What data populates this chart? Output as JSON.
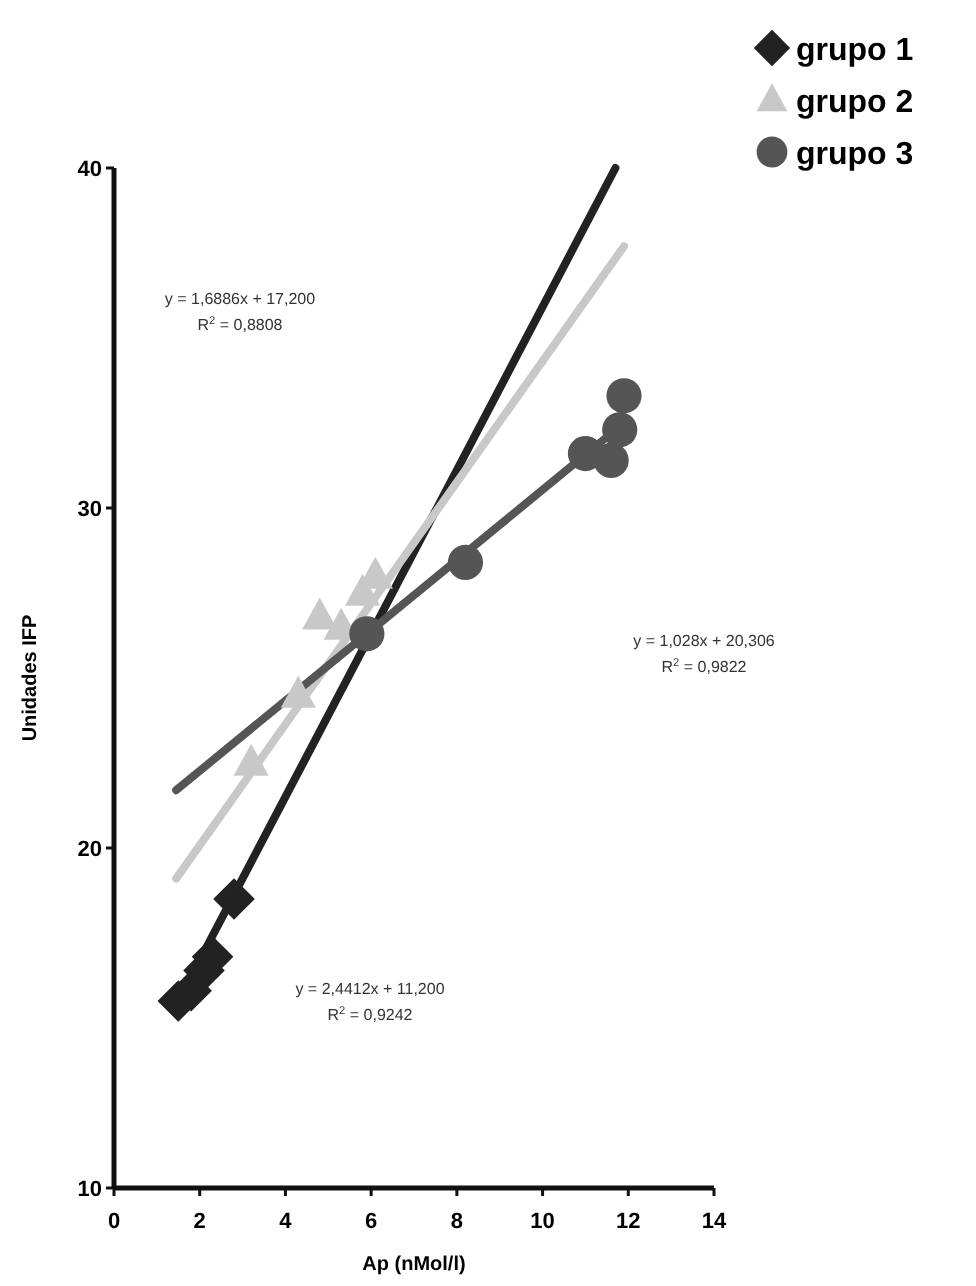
{
  "chart_data": {
    "type": "scatter",
    "xlabel": "Ap (nMol/l)",
    "ylabel": "Unidades IFP",
    "xlim": [
      0,
      14
    ],
    "xticks": [
      0,
      2,
      4,
      6,
      8,
      10,
      12,
      14
    ],
    "ylim": [
      10,
      40
    ],
    "yticks": [
      10,
      20,
      30,
      40
    ],
    "grid": false,
    "legend": "top right",
    "series": [
      {
        "name": "grupo 1",
        "color": "#222222",
        "marker": "diamond",
        "x": [
          1.5,
          1.8,
          2.1,
          2.3,
          2.8
        ],
        "values": [
          15.5,
          15.8,
          16.4,
          16.8,
          18.5
        ]
      },
      {
        "name": "grupo 2",
        "color": "#c8c8c8",
        "marker": "triangle",
        "x": [
          3.2,
          4.3,
          4.8,
          5.3,
          5.8,
          6.1
        ],
        "values": [
          22.5,
          24.5,
          26.8,
          26.5,
          27.5,
          28
        ]
      },
      {
        "name": "grupo 3",
        "color": "#555555",
        "marker": "circle",
        "x": [
          5.9,
          8.2,
          11,
          11.6,
          11.8,
          11.9
        ],
        "values": [
          26.3,
          28.4,
          31.6,
          31.4,
          32.3,
          33.3
        ]
      },
      {
        "type": "line",
        "color": "#222222",
        "x": [
          1.5,
          11.7
        ],
        "values": [
          15.5,
          40
        ]
      },
      {
        "type": "line",
        "color": "#c8c8c8",
        "x": [
          1.45,
          11.9
        ],
        "values": [
          19.1,
          37.7
        ]
      },
      {
        "type": "line",
        "color": "#555555",
        "x": [
          1.45,
          11.9
        ],
        "values": [
          21.7,
          32.5
        ]
      }
    ],
    "annotations": [
      "y = 1,6886x + 17,200",
      "R$^{2}$ = 0,8808",
      "y = 1,028x + 20,306",
      "R$^{2}$ = 0,9822",
      "y = 2,4412x + 11,200",
      "R$^{2}$ = 0,9242"
    ]
  }
}
